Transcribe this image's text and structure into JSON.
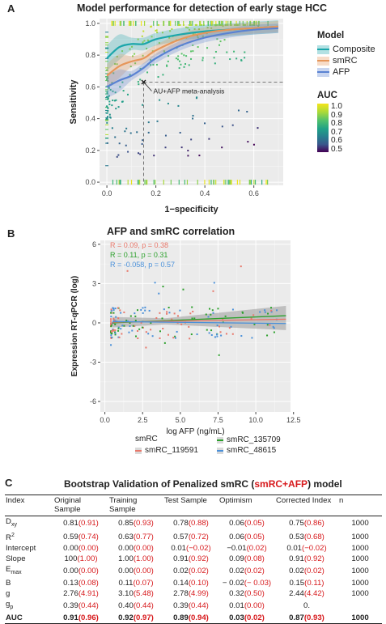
{
  "panelA": {
    "letter": "A",
    "title": "Model performance for detection of early stage HCC",
    "xlabel": "1−specificity",
    "ylabel": "Sensitivity",
    "annotation": "AU+AFP meta-analysis",
    "legend": {
      "model_title": "Model",
      "models": [
        {
          "name": "Composite",
          "color": "#1ba6ab"
        },
        {
          "name": "smRC",
          "color": "#e6965a"
        },
        {
          "name": "AFP",
          "color": "#5a82d2"
        }
      ],
      "auc_title": "AUC",
      "auc_ticks": [
        "1.0",
        "0.9",
        "0.8",
        "0.7",
        "0.6",
        "0.5"
      ]
    }
  },
  "panelB": {
    "letter": "B",
    "title": "AFP and smRC correlation",
    "xlabel": "log AFP (ng/mL)",
    "ylabel": "Expression RT-qPCR (log)",
    "stats": [
      {
        "text": "R = 0.09, p = 0.38",
        "color": "#e8776a"
      },
      {
        "text": "R = 0.11, p = 0.31",
        "color": "#2ca02c"
      },
      {
        "text": "R = -0.058, p = 0.57",
        "color": "#4a90d9"
      }
    ],
    "legend": {
      "title": "smRC",
      "items": [
        {
          "name": "smRC_135709",
          "color": "#2ca02c"
        },
        {
          "name": "smRC_119591",
          "color": "#e8776a"
        },
        {
          "name": "smRC_48615",
          "color": "#4a90d9"
        }
      ]
    }
  },
  "panelC": {
    "letter": "C",
    "title_pre": "Bootstrap Validation of Penalized smRC (",
    "title_red": "smRC+AFP",
    "title_post": ") model",
    "headers": [
      "Index",
      "Original Sample",
      "Training Sample",
      "Test Sample",
      "Optimism",
      "Corrected Index",
      "n"
    ],
    "rows": [
      {
        "index": "D_xy",
        "orig": "0.81",
        "orig_r": "(0.91)",
        "train": "0.85",
        "train_r": "(0.93)",
        "test": "0.78",
        "test_r": "(0.88)",
        "opt": "0.06",
        "opt_r": "(0.05)",
        "corr": "0.75",
        "corr_r": "(0.86)",
        "n": "1000"
      },
      {
        "index": "R^2",
        "orig": "0.59",
        "orig_r": "(0.74)",
        "train": "0.63",
        "train_r": "(0.77)",
        "test": "0.57",
        "test_r": "(0.72)",
        "opt": "0.06",
        "opt_r": "(0.05)",
        "corr": "0.53",
        "corr_r": "(0.68)",
        "n": "1000"
      },
      {
        "index": "Intercept",
        "orig": "0.00",
        "orig_r": "(0.00)",
        "train": "0.00",
        "train_r": "(0.00)",
        "test": "0.01",
        "test_r": "(−0.02)",
        "opt": "−0.01",
        "opt_r": "(0.02)",
        "corr": "0.01",
        "corr_r": "(−0.02)",
        "n": "1000"
      },
      {
        "index": "Slope",
        "orig": "100",
        "orig_r": "(1.00)",
        "train": "1.00",
        "train_r": "(1.00)",
        "test": "0.91",
        "test_r": "(0.92)",
        "opt": "0.09",
        "opt_r": "(0.08)",
        "corr": "0.91",
        "corr_r": "(0.92)",
        "n": "1000"
      },
      {
        "index": "E_max",
        "orig": "0.00",
        "orig_r": "(0.00)",
        "train": "0.00",
        "train_r": "(0.00)",
        "test": "0.02",
        "test_r": "(0.02)",
        "opt": "0.02",
        "opt_r": "(0.02)",
        "corr": "0.02",
        "corr_r": "(0.02)",
        "n": "1000"
      },
      {
        "index": "B",
        "orig": "0.13",
        "orig_r": "(0.08)",
        "train": "0.11",
        "train_r": "(0.07)",
        "test": "0.14",
        "test_r": "(0.10)",
        "opt": "− 0.02",
        "opt_r": "(− 0.03)",
        "corr": "0.15",
        "corr_r": "(0.11)",
        "n": "1000"
      },
      {
        "index": "g",
        "orig": "2.76",
        "orig_r": "(4.91)",
        "train": "3.10",
        "train_r": "(5.48)",
        "test": "2.78",
        "test_r": "(4.99)",
        "opt": "0.32",
        "opt_r": "(0.50)",
        "corr": "2.44",
        "corr_r": "(4.42)",
        "n": "1000"
      },
      {
        "index": "g_p",
        "orig": "0.39",
        "orig_r": "(0.44)",
        "train": "0.40",
        "train_r": "(0.44)",
        "test": "0.39",
        "test_r": "(0.44)",
        "opt": "0.01",
        "opt_r": "(0.00)",
        "corr": "0.",
        "corr_r": "",
        "n": ""
      },
      {
        "index": "AUC",
        "orig": "0.91",
        "orig_r": "(0.96)",
        "train": "0.92",
        "train_r": "(0.97)",
        "test": "0.89",
        "test_r": "(0.94)",
        "opt": "0.03",
        "opt_r": "(0.02)",
        "corr": "0.87",
        "corr_r": "(0.93)",
        "n": "1000"
      }
    ]
  },
  "chart_data": [
    {
      "type": "scatter",
      "title": "Model performance for detection of early stage HCC",
      "xlabel": "1−specificity",
      "ylabel": "Sensitivity",
      "xlim": [
        -0.03,
        0.72
      ],
      "ylim": [
        -0.02,
        1.03
      ],
      "xticks": [
        0.0,
        0.2,
        0.4,
        0.6
      ],
      "yticks": [
        0.0,
        0.2,
        0.4,
        0.6,
        0.8,
        1.0
      ],
      "grid": true,
      "color_scale": {
        "name": "AUC",
        "range": [
          0.45,
          1.0
        ]
      },
      "series": [
        {
          "name": "Composite",
          "x": [
            0.0,
            0.05,
            0.1,
            0.15,
            0.2,
            0.3,
            0.4,
            0.5,
            0.6,
            0.7
          ],
          "y": [
            0.78,
            0.85,
            0.87,
            0.87,
            0.9,
            0.93,
            0.95,
            0.96,
            0.97,
            0.98
          ]
        },
        {
          "name": "smRC",
          "x": [
            0.0,
            0.05,
            0.1,
            0.15,
            0.2,
            0.3,
            0.4,
            0.5,
            0.6,
            0.7
          ],
          "y": [
            0.67,
            0.73,
            0.76,
            0.78,
            0.83,
            0.9,
            0.94,
            0.96,
            0.97,
            0.98
          ]
        },
        {
          "name": "AFP",
          "x": [
            0.0,
            0.05,
            0.1,
            0.15,
            0.2,
            0.3,
            0.4,
            0.5,
            0.6,
            0.7
          ],
          "y": [
            0.6,
            0.64,
            0.67,
            0.72,
            0.78,
            0.86,
            0.91,
            0.94,
            0.96,
            0.97
          ]
        }
      ],
      "annotation": {
        "text": "AU+AFP meta-analysis",
        "x": 0.15,
        "y": 0.63
      }
    },
    {
      "type": "scatter",
      "title": "AFP and smRC correlation",
      "xlabel": "log AFP (ng/mL)",
      "ylabel": "Expression RT-qPCR (log)",
      "xlim": [
        -0.3,
        12.3
      ],
      "ylim": [
        -6.8,
        6.3
      ],
      "xticks": [
        0.0,
        2.5,
        5.0,
        7.5,
        10.0,
        12.5
      ],
      "yticks": [
        -6,
        -3,
        0,
        3,
        6
      ],
      "series": [
        {
          "name": "smRC_135709",
          "fit": {
            "x": [
              0.5,
              12.0
            ],
            "y": [
              0.0,
              0.55
            ]
          }
        },
        {
          "name": "smRC_119591",
          "fit": {
            "x": [
              0.5,
              12.0
            ],
            "y": [
              0.05,
              0.28
            ]
          }
        },
        {
          "name": "smRC_48615",
          "fit": {
            "x": [
              0.5,
              12.0
            ],
            "y": [
              0.1,
              -0.05
            ]
          }
        }
      ]
    }
  ]
}
